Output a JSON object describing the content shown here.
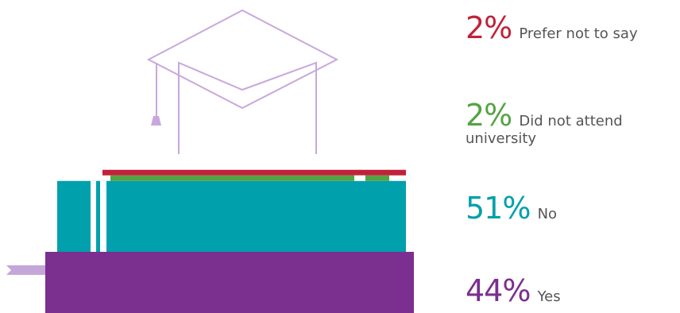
{
  "chart_data": {
    "type": "bar",
    "categories": [
      "Prefer not to say",
      "Did not attend university",
      "No",
      "Yes"
    ],
    "values": [
      2,
      2,
      51,
      44
    ],
    "unit": "%",
    "value_labels": [
      "2%",
      "2%",
      "51%",
      "44%"
    ],
    "colors": [
      "#c0223a",
      "#55a344",
      "#00a0ad",
      "#7b2f8f"
    ],
    "legend_position": "right",
    "decoration": "mortarboard-on-book-stack"
  }
}
